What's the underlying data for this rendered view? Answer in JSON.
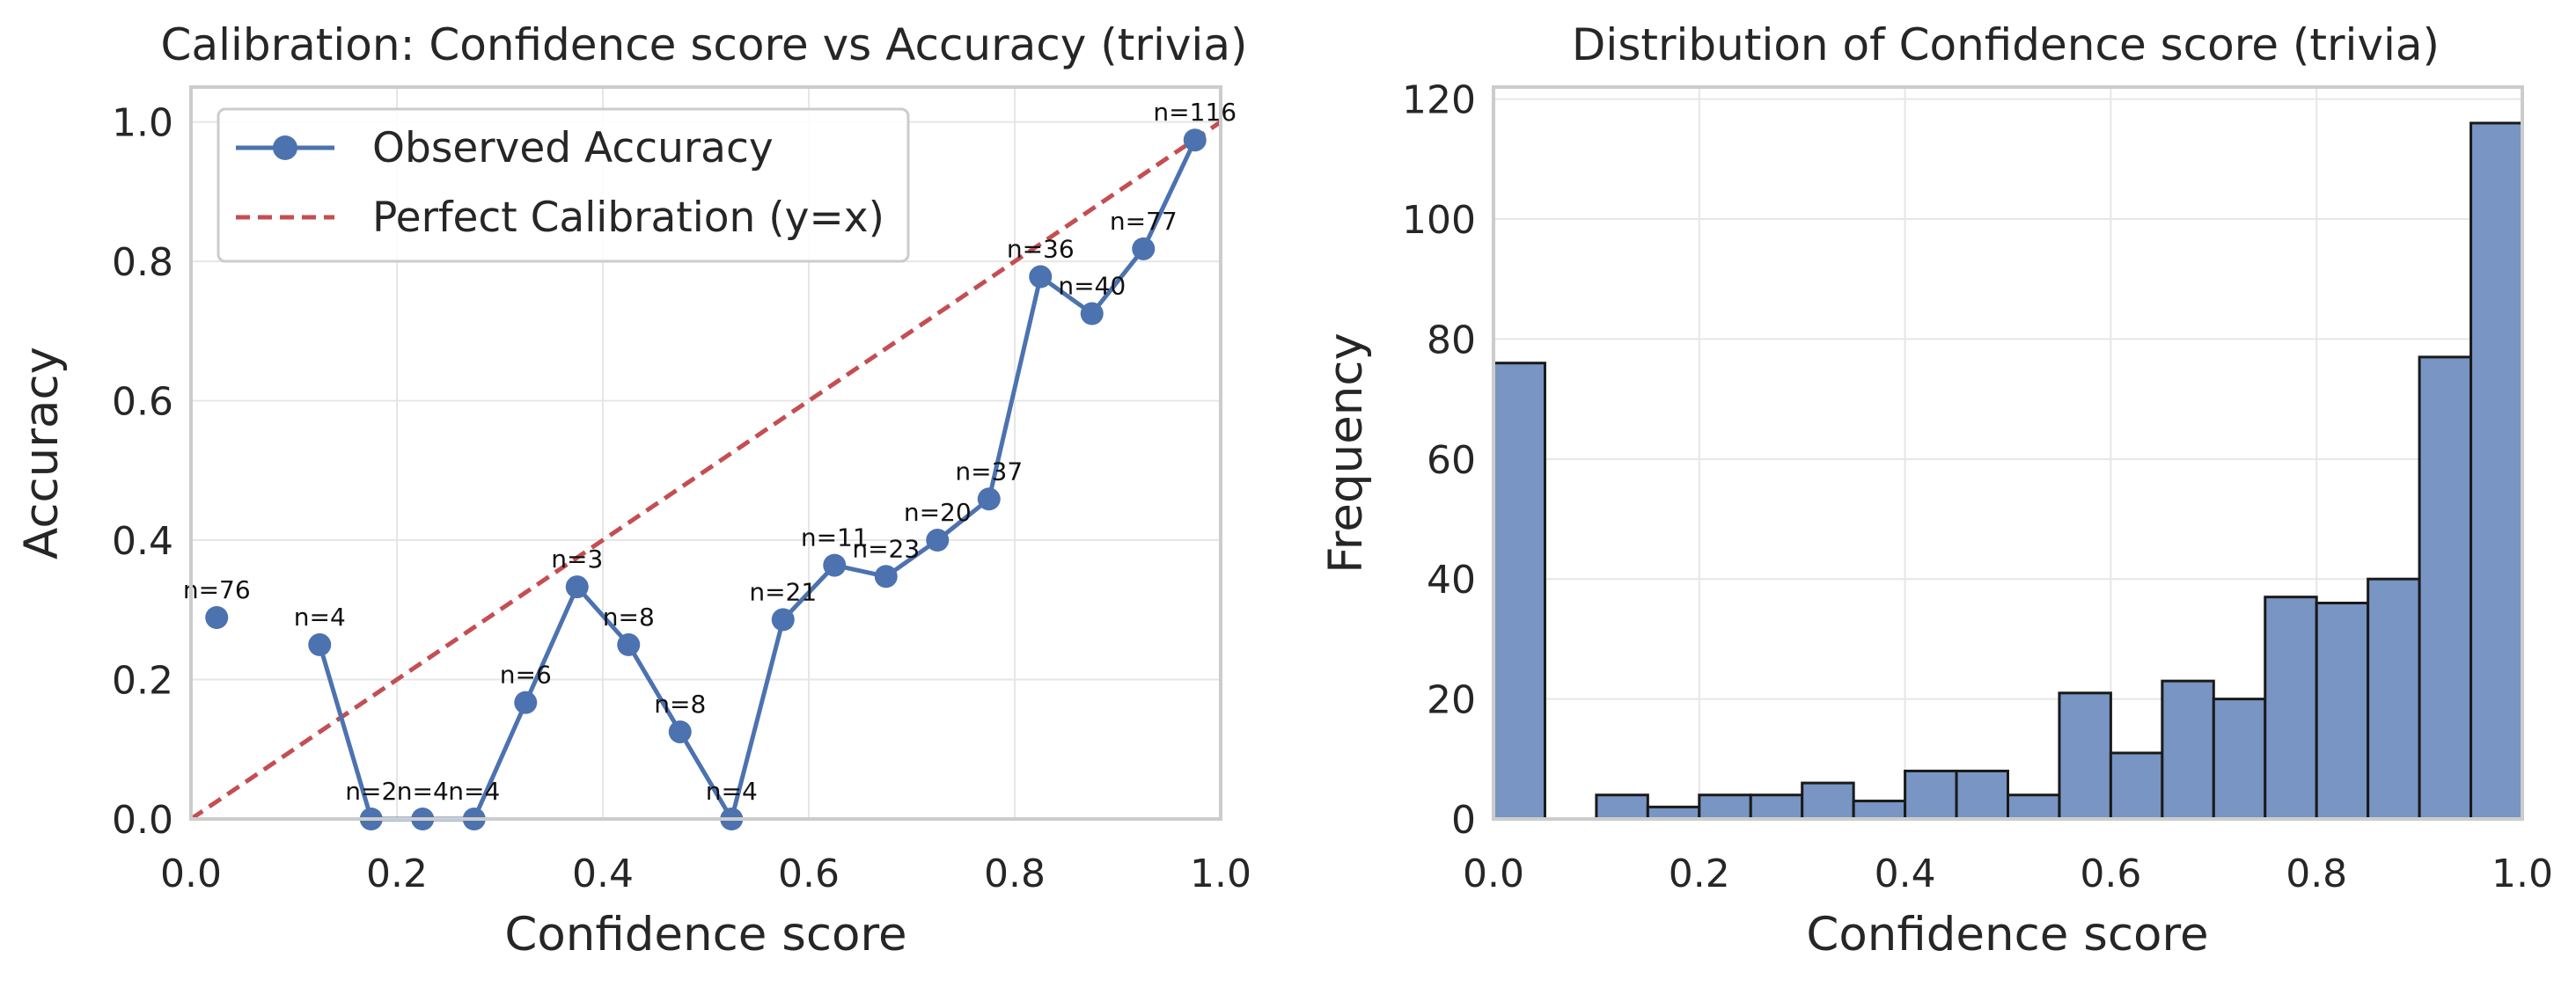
{
  "colors": {
    "observed": "#4c72b0",
    "perfect": "#c44e52",
    "hist_fill": "#7895c3",
    "hist_edge": "#1a1a1a",
    "grid": "#e6e6e6",
    "spine": "#cccccc"
  },
  "chart_data": [
    {
      "type": "line",
      "title": "Calibration: Confidence score vs Accuracy (trivia)",
      "xlabel": "Confidence score",
      "ylabel": "Accuracy",
      "xlim": [
        0,
        1
      ],
      "ylim": [
        0,
        1.05
      ],
      "xticks": [
        0,
        0.2,
        0.4,
        0.6,
        0.8,
        1.0
      ],
      "xtick_labels": [
        "0.0",
        "0.2",
        "0.4",
        "0.6",
        "0.8",
        "1.0"
      ],
      "yticks": [
        0,
        0.2,
        0.4,
        0.6,
        0.8,
        1.0
      ],
      "ytick_labels": [
        "0.0",
        "0.2",
        "0.4",
        "0.6",
        "0.8",
        "1.0"
      ],
      "grid": true,
      "legend": {
        "position": "top-left",
        "entries": [
          "Observed Accuracy",
          "Perfect Calibration (y=x)"
        ]
      },
      "series": [
        {
          "name": "Observed Accuracy",
          "style": "line-marker",
          "x": [
            0.025,
            0.125,
            0.175,
            0.225,
            0.275,
            0.325,
            0.375,
            0.425,
            0.475,
            0.525,
            0.575,
            0.625,
            0.675,
            0.725,
            0.775,
            0.825,
            0.875,
            0.925,
            0.975
          ],
          "y": [
            0.289,
            0.25,
            0.0,
            0.0,
            0.0,
            0.167,
            0.333,
            0.25,
            0.125,
            0.0,
            0.286,
            0.364,
            0.348,
            0.4,
            0.459,
            0.778,
            0.725,
            0.818,
            0.974
          ],
          "labels": [
            "n=76",
            "n=4",
            "n=2",
            "n=4",
            "n=4",
            "n=6",
            "n=3",
            "n=8",
            "n=8",
            "n=4",
            "n=21",
            "n=11",
            "n=23",
            "n=20",
            "n=37",
            "n=36",
            "n=40",
            "n=77",
            "n=116"
          ],
          "connect_from_index": 1
        },
        {
          "name": "Perfect Calibration (y=x)",
          "style": "dashed",
          "x": [
            0,
            1
          ],
          "y": [
            0,
            1
          ]
        }
      ]
    },
    {
      "type": "bar",
      "subtype": "histogram",
      "title": "Distribution of Confidence score (trivia)",
      "xlabel": "Confidence score",
      "ylabel": "Frequency",
      "xlim": [
        0,
        1
      ],
      "ylim": [
        0,
        122
      ],
      "xticks": [
        0,
        0.2,
        0.4,
        0.6,
        0.8,
        1.0
      ],
      "xtick_labels": [
        "0.0",
        "0.2",
        "0.4",
        "0.6",
        "0.8",
        "1.0"
      ],
      "yticks": [
        0,
        20,
        40,
        60,
        80,
        100,
        120
      ],
      "ytick_labels": [
        "0",
        "20",
        "40",
        "60",
        "80",
        "100",
        "120"
      ],
      "grid": true,
      "bin_edges": [
        0.0,
        0.05,
        0.1,
        0.15,
        0.2,
        0.25,
        0.3,
        0.35,
        0.4,
        0.45,
        0.5,
        0.55,
        0.6,
        0.65,
        0.7,
        0.75,
        0.8,
        0.85,
        0.9,
        0.95,
        1.0
      ],
      "counts": [
        76,
        0,
        4,
        2,
        4,
        4,
        6,
        3,
        8,
        8,
        4,
        21,
        11,
        23,
        20,
        37,
        36,
        40,
        77,
        116
      ]
    }
  ]
}
